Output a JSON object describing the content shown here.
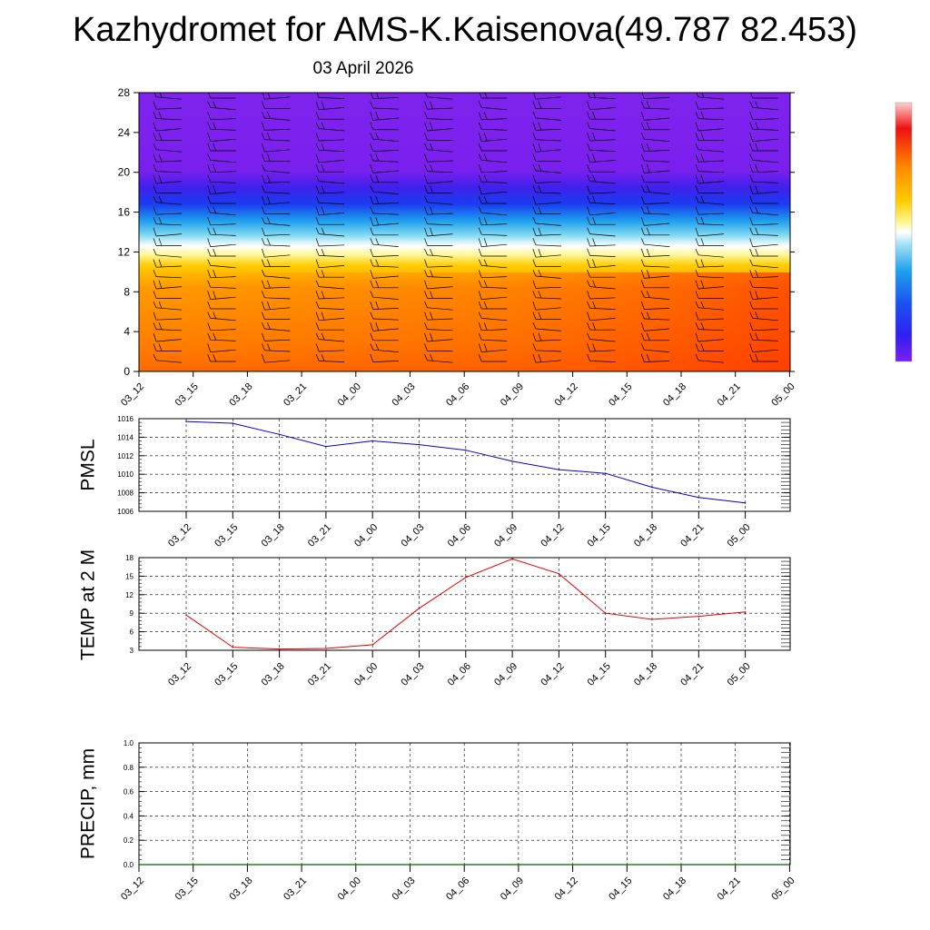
{
  "title": "Kazhydromet for AMS-K.Kaisenova(49.787 82.453)",
  "subtitle": "03 April 2026",
  "colors": {
    "pmsl_line": "#0000cc",
    "temp_line": "#e00000",
    "precip_line": "#006400",
    "barb": "#000000"
  },
  "chart_data": [
    {
      "id": "cross-section",
      "type": "heatmap",
      "title": "",
      "xlabel": "",
      "ylabel": "",
      "x_ticks": [
        "03_12",
        "03_15",
        "03_18",
        "03_21",
        "04_00",
        "04_03",
        "04_06",
        "04_09",
        "04_12",
        "04_15",
        "04_18",
        "04_21",
        "05_00"
      ],
      "y_ticks": [
        "0",
        "4",
        "8",
        "12",
        "16",
        "20",
        "24",
        "28"
      ],
      "ylim": [
        0,
        28
      ],
      "fill": "temperature-like colour field: orange/red near the surface, yellow and white around 12, cyan and blue around 14-18, violet above 20",
      "overlay": "wind barbs",
      "colorbar_labels": []
    },
    {
      "id": "pmsl",
      "type": "line",
      "ylabel": "PMSL",
      "ylim": [
        1006,
        1016
      ],
      "y_ticks": [
        "1006",
        "1008",
        "1010",
        "1012",
        "1014",
        "1016"
      ],
      "x": [
        "03_12",
        "03_15",
        "03_18",
        "03_21",
        "04_00",
        "04_03",
        "04_06",
        "04_09",
        "04_12",
        "04_15",
        "04_18",
        "04_21",
        "05_00"
      ],
      "series": [
        {
          "values": [
            1015.7,
            1015.5,
            1014.3,
            1013.0,
            1013.6,
            1013.2,
            1012.6,
            1011.4,
            1010.5,
            1010.1,
            1008.6,
            1007.5,
            1006.9
          ]
        }
      ],
      "grid": true
    },
    {
      "id": "temp",
      "type": "line",
      "ylabel": "TEMP at 2 M",
      "ylim": [
        3,
        18
      ],
      "y_ticks": [
        "3",
        "6",
        "9",
        "12",
        "15",
        "18"
      ],
      "x": [
        "03_12",
        "03_15",
        "03_18",
        "03_21",
        "04_00",
        "04_03",
        "04_06",
        "04_09",
        "04_12",
        "04_15",
        "04_18",
        "04_21",
        "05_00"
      ],
      "series": [
        {
          "values": [
            8.7,
            3.5,
            3.2,
            3.3,
            3.9,
            9.8,
            14.8,
            17.8,
            15.4,
            9.0,
            8.0,
            8.5,
            9.2
          ]
        }
      ],
      "grid": true
    },
    {
      "id": "precip",
      "type": "line",
      "ylabel": "PRECIP, mm",
      "ylim": [
        0,
        1
      ],
      "y_ticks": [
        "0.0",
        "0.2",
        "0.4",
        "0.6",
        "0.8",
        "1.0"
      ],
      "x": [
        "03_12",
        "03_15",
        "03_18",
        "03_21",
        "04_00",
        "04_03",
        "04_06",
        "04_09",
        "04_12",
        "04_15",
        "04_18",
        "04_21",
        "05_00"
      ],
      "series": [
        {
          "values": [
            0,
            0,
            0,
            0,
            0,
            0,
            0,
            0,
            0,
            0,
            0,
            0,
            0
          ]
        }
      ],
      "grid": true
    }
  ]
}
